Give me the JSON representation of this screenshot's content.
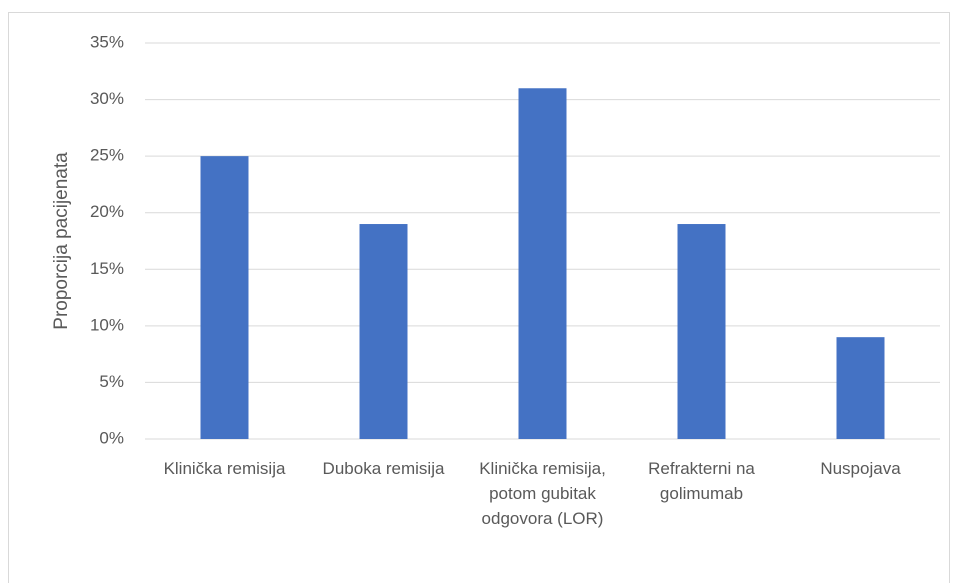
{
  "chart_data": {
    "type": "bar",
    "y_label": "Proporcija pacijenata",
    "categories": [
      "Klinička remisija",
      "Duboka remisija",
      "Klinička remisija, potom gubitak odgovora (LOR)",
      "Refrakterni na golimumab",
      "Nuspojava"
    ],
    "values": [
      25,
      19,
      31,
      19,
      9
    ],
    "color": "#4472c4",
    "ylim": [
      0,
      35
    ],
    "yticks": [
      {
        "value": 0,
        "label": "0%"
      },
      {
        "value": 5,
        "label": "5%"
      },
      {
        "value": 10,
        "label": "10%"
      },
      {
        "value": 15,
        "label": "15%"
      },
      {
        "value": 20,
        "label": "20%"
      },
      {
        "value": 25,
        "label": "25%"
      },
      {
        "value": 30,
        "label": "30%"
      },
      {
        "value": 35,
        "label": "35%"
      }
    ],
    "grid": true
  }
}
